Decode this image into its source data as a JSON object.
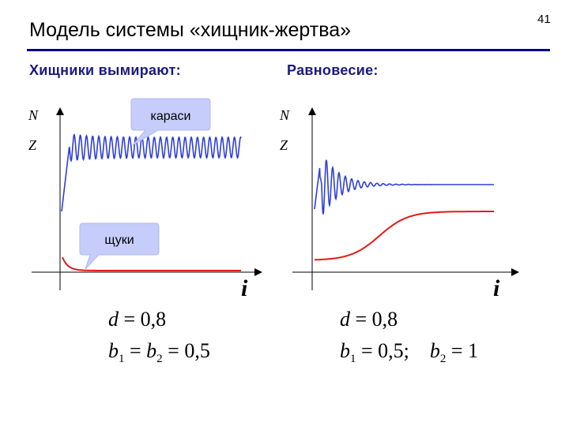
{
  "slide": {
    "title": "Модель системы «хищник-жертва»",
    "number": "41",
    "left_heading": "Хищники вымирают:",
    "right_heading": "Равновесие:"
  },
  "chart_data": [
    {
      "type": "line",
      "title": "Хищники вымирают:",
      "xlabel": "i",
      "ylabel_top": "N",
      "ylabel_bottom": "Z",
      "grid": false,
      "callouts": [
        "караси",
        "щуки"
      ],
      "series": [
        {
          "color": "#2e3fd8",
          "behavior": "rise then sustained oscillation around a high level"
        },
        {
          "color": "#e01b1b",
          "behavior": "quick decay to near zero"
        }
      ],
      "params": {
        "d": "0,8",
        "b1": "0,5",
        "b2": "0,5"
      }
    },
    {
      "type": "line",
      "title": "Равновесие:",
      "xlabel": "i",
      "ylabel_top": "N",
      "ylabel_bottom": "Z",
      "grid": false,
      "series": [
        {
          "color": "#2e3fd8",
          "behavior": "damped oscillation settling to a steady level"
        },
        {
          "color": "#e01b1b",
          "behavior": "sigmoid rise to a steady level"
        }
      ],
      "params": {
        "d": "0,8",
        "b1": "0,5",
        "b2": "1"
      }
    }
  ]
}
